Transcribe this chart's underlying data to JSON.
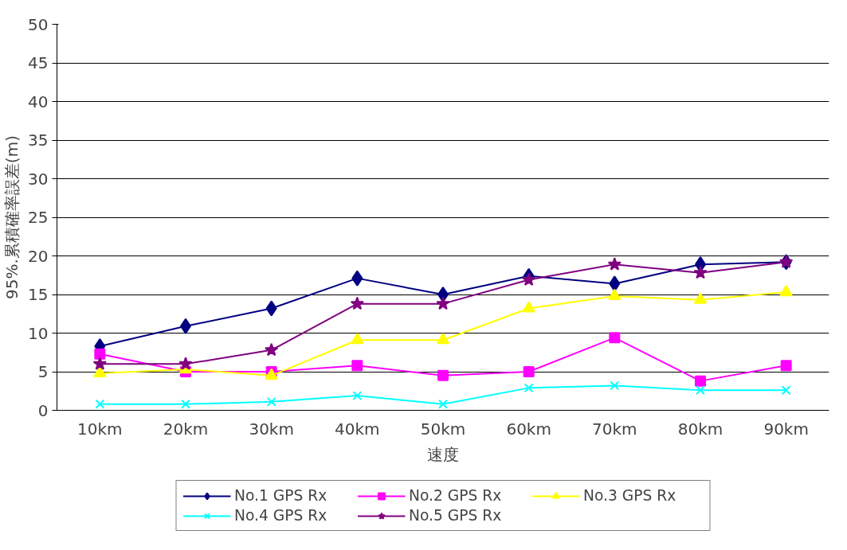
{
  "chart_data": {
    "type": "line",
    "xlabel": "速度",
    "ylabel": "95%.累積確率誤差(m)",
    "categories": [
      "10km",
      "20km",
      "30km",
      "40km",
      "50km",
      "60km",
      "70km",
      "80km",
      "90km"
    ],
    "ylim": [
      0,
      50
    ],
    "yticks": [
      0,
      5,
      10,
      15,
      20,
      25,
      30,
      35,
      40,
      45,
      50
    ],
    "grid": "y",
    "legend": "bottom",
    "series": [
      {
        "name": "No.1 GPS Rx",
        "color": "#000080",
        "marker": "diamond",
        "values": [
          8.3,
          10.9,
          13.2,
          17.1,
          15.0,
          17.4,
          16.4,
          18.9,
          19.2
        ]
      },
      {
        "name": "No.2 GPS Rx",
        "color": "#ff00ff",
        "marker": "square",
        "values": [
          7.3,
          5.0,
          5.0,
          5.8,
          4.5,
          5.0,
          9.4,
          3.8,
          5.8
        ]
      },
      {
        "name": "No.3 GPS Rx",
        "color": "#ffff00",
        "marker": "triangle",
        "values": [
          4.8,
          5.3,
          4.5,
          9.1,
          9.1,
          13.2,
          14.8,
          14.3,
          15.3
        ]
      },
      {
        "name": "No.4 GPS Rx",
        "color": "#00ffff",
        "marker": "cross",
        "values": [
          0.8,
          0.8,
          1.1,
          1.9,
          0.8,
          2.9,
          3.2,
          2.6,
          2.6
        ]
      },
      {
        "name": "No.5 GPS Rx",
        "color": "#800080",
        "marker": "star",
        "values": [
          6.0,
          6.0,
          7.8,
          13.8,
          13.8,
          16.9,
          18.9,
          17.8,
          19.2
        ]
      }
    ]
  }
}
